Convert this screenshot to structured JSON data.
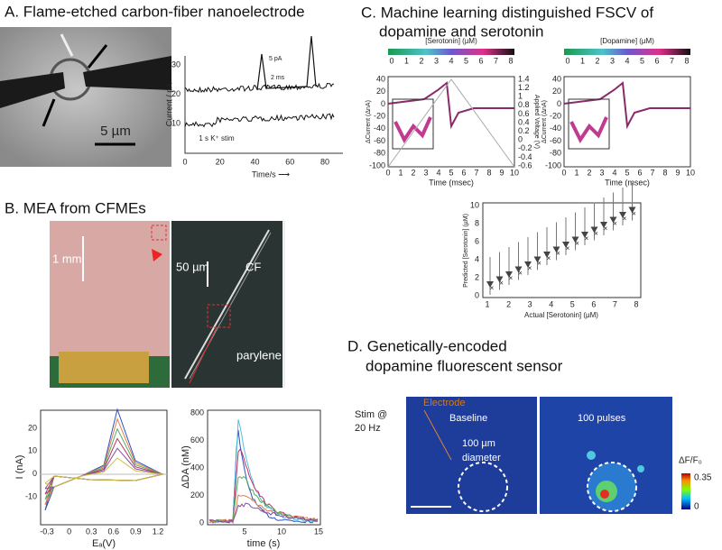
{
  "panel_a": {
    "title": "A. Flame-etched carbon-fiber nanoelectrode",
    "scale_bar": "5 µm",
    "y_label": "Current / pA",
    "x_label": "Time/s ⟶",
    "yticks": [
      "30",
      "20",
      "10"
    ],
    "xticks": [
      "0",
      "20",
      "40",
      "60",
      "80"
    ],
    "inset_y": "5 pA",
    "inset_x": "2 ms",
    "stim": "1 s K⁺ stim"
  },
  "panel_b": {
    "title": "B. MEA from CFMEs",
    "scale_mm": "1 mm",
    "scale_um": "50 µm",
    "cf": "CF",
    "parylene": "parylene",
    "cv": {
      "y_label": "I (nA)",
      "x_label": "Eₐ(V)",
      "yticks": [
        "20",
        "10",
        "0",
        "-10"
      ],
      "xticks": [
        "-0.3",
        "0",
        "0.3",
        "0.6",
        "0.9",
        "1.2"
      ]
    },
    "da": {
      "y_label": "ΔDA (nM)",
      "x_label": "time (s)",
      "yticks": [
        "800",
        "600",
        "400",
        "200",
        "0"
      ],
      "xticks": [
        "5",
        "10",
        "15"
      ]
    }
  },
  "panel_c": {
    "title_line1": "C. Machine learning distinguished FSCV of",
    "title_line2": "dopamine and serotonin",
    "left": {
      "colorbar_label": "[Serotonin] (µM)",
      "colorbar_ticks": [
        "0",
        "1",
        "2",
        "3",
        "4",
        "5",
        "6",
        "7",
        "8"
      ],
      "y_label": "ΔCurrent (ΔnA)",
      "y2_label": "Applied Voltage (V)",
      "x_label": "Time (msec)",
      "yticks": [
        "40",
        "20",
        "0",
        "-20",
        "-40",
        "-60",
        "-80",
        "-100"
      ],
      "y2ticks": [
        "1.4",
        "1.2",
        "1",
        "0.8",
        "0.6",
        "0.4",
        "0.2",
        "0",
        "-0.2",
        "-0.4",
        "-0.6"
      ],
      "xticks": [
        "0",
        "1",
        "2",
        "3",
        "4",
        "5",
        "6",
        "7",
        "8",
        "9",
        "10"
      ]
    },
    "right": {
      "colorbar_label": "[Dopamine] (µM)",
      "colorbar_ticks": [
        "0",
        "1",
        "2",
        "3",
        "4",
        "5",
        "6",
        "7",
        "8"
      ],
      "y_label": "ΔCurrent (ΔnA)",
      "x_label": "Time (msec)",
      "yticks": [
        "40",
        "20",
        "0",
        "-20",
        "-40",
        "-60",
        "-80",
        "-100"
      ],
      "xticks": [
        "0",
        "1",
        "2",
        "3",
        "4",
        "5",
        "6",
        "7",
        "8",
        "9",
        "10"
      ]
    },
    "scatter": {
      "y_label": "Predicted [Serotonin] (µM)",
      "x_label": "Actual [Serotonin] (µM)",
      "yticks": [
        "10",
        "8",
        "6",
        "4",
        "2",
        "0"
      ],
      "xticks": [
        "1",
        "2",
        "3",
        "4",
        "5",
        "6",
        "7",
        "8"
      ]
    }
  },
  "panel_d": {
    "title_line1": "D. Genetically-encoded",
    "title_line2": "dopamine fluorescent sensor",
    "stim_line1": "Stim @",
    "stim_line2": "20 Hz",
    "electrode": "Electrode",
    "baseline": "Baseline",
    "pulses": "100 pulses",
    "diameter_line1": "100 µm",
    "diameter_line2": "diameter",
    "colorbar_label": "ΔF/F₀",
    "colorbar_max": "0.35",
    "colorbar_min": "0"
  }
}
